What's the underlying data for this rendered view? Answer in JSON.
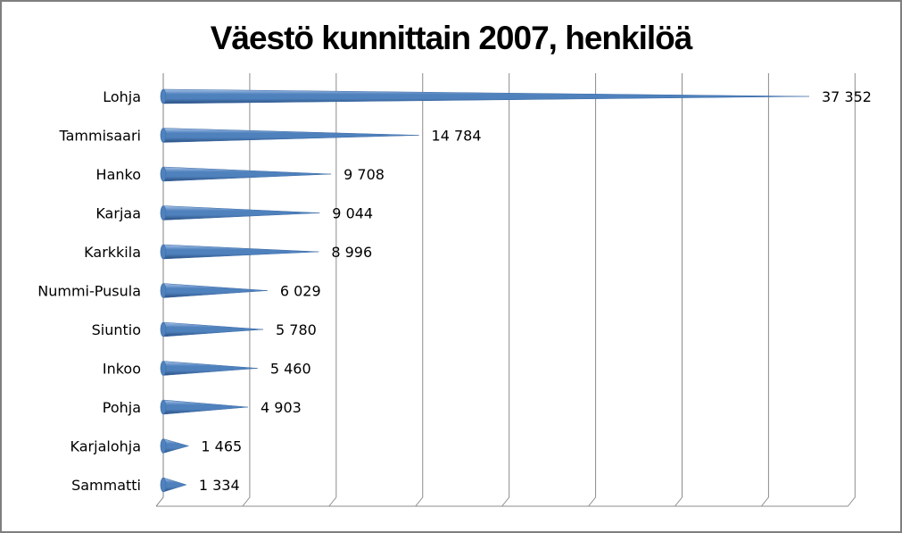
{
  "chart_data": {
    "type": "bar",
    "orientation": "horizontal",
    "title": "Väestö kunnittain 2007, henkilöä",
    "categories": [
      "Lohja",
      "Tammisaari",
      "Hanko",
      "Karjaa",
      "Karkkila",
      "Nummi-Pusula",
      "Siuntio",
      "Inkoo",
      "Pohja",
      "Karjalohja",
      "Sammatti"
    ],
    "values": [
      37352,
      14784,
      9708,
      9044,
      8996,
      6029,
      5780,
      5460,
      4903,
      1465,
      1334
    ],
    "value_labels": [
      "37 352",
      "14 784",
      "9 708",
      "9 044",
      "8 996",
      "6 029",
      "5 780",
      "5 460",
      "4 903",
      "1 465",
      "1 334"
    ],
    "xlim": [
      0,
      40000
    ],
    "x_tick_labels_visible": false,
    "grid": "vertical",
    "legend": "none",
    "bar_shape": "cone",
    "bar_color": "#4f81bd",
    "bar_color_dark": "#2a4f80",
    "bar_color_light": "#a9c4e8"
  }
}
